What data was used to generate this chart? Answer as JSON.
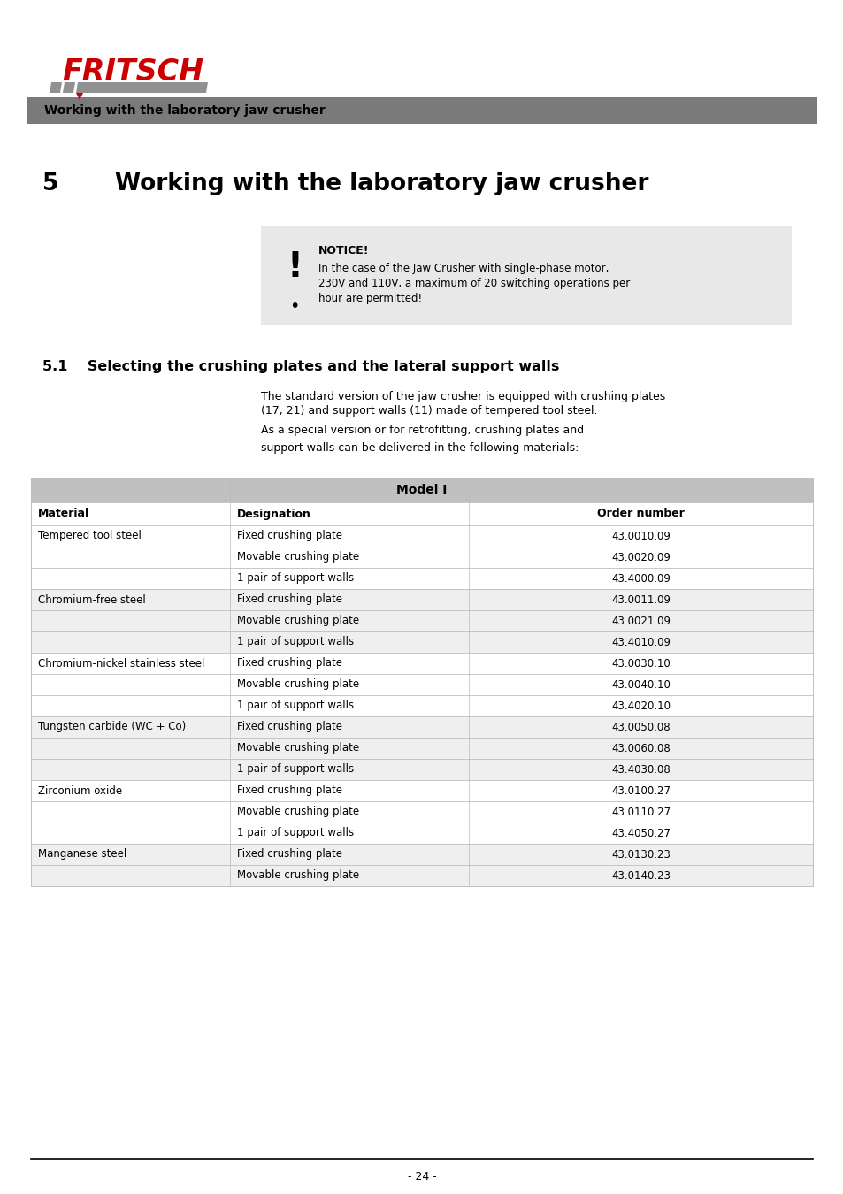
{
  "page_bg": "#ffffff",
  "header_bar_color": "#7a7a7a",
  "header_text": "Working with the laboratory jaw crusher",
  "chapter_num": "5",
  "chapter_title": "Working with the laboratory jaw crusher",
  "notice_box_color": "#e8e8e8",
  "notice_title": "NOTICE!",
  "notice_line1": "In the case of the Jaw Crusher with single-phase motor,",
  "notice_line2": "230V and 110V, a maximum of 20 switching operations per",
  "notice_line3": "hour are permitted!",
  "section_title": "5.1    Selecting the crushing plates and the lateral support walls",
  "body_line1": "The standard version of the jaw crusher is equipped with crushing plates",
  "body_line2": "(17, 21) and support walls (11) made of tempered tool steel.",
  "body_line3": "As a special version or for retrofitting, crushing plates and",
  "body_line4": "support walls can be delivered in the following materials:",
  "table_title": "Model I",
  "table_header_bg": "#c0c0c0",
  "table_row_bg_light": "#efefef",
  "table_row_bg_white": "#ffffff",
  "table_cols": [
    "Material",
    "Designation",
    "Order number"
  ],
  "table_rows": [
    [
      "Tempered tool steel",
      "Fixed crushing plate",
      "43.0010.09"
    ],
    [
      "",
      "Movable crushing plate",
      "43.0020.09"
    ],
    [
      "",
      "1 pair of support walls",
      "43.4000.09"
    ],
    [
      "Chromium-free steel",
      "Fixed crushing plate",
      "43.0011.09"
    ],
    [
      "",
      "Movable crushing plate",
      "43.0021.09"
    ],
    [
      "",
      "1 pair of support walls",
      "43.4010.09"
    ],
    [
      "Chromium-nickel stainless steel",
      "Fixed crushing plate",
      "43.0030.10"
    ],
    [
      "",
      "Movable crushing plate",
      "43.0040.10"
    ],
    [
      "",
      "1 pair of support walls",
      "43.4020.10"
    ],
    [
      "Tungsten carbide (WC + Co)",
      "Fixed crushing plate",
      "43.0050.08"
    ],
    [
      "",
      "Movable crushing plate",
      "43.0060.08"
    ],
    [
      "",
      "1 pair of support walls",
      "43.4030.08"
    ],
    [
      "Zirconium oxide",
      "Fixed crushing plate",
      "43.0100.27"
    ],
    [
      "",
      "Movable crushing plate",
      "43.0110.27"
    ],
    [
      "",
      "1 pair of support walls",
      "43.4050.27"
    ],
    [
      "Manganese steel",
      "Fixed crushing plate",
      "43.0130.23"
    ],
    [
      "",
      "Movable crushing plate",
      "43.0140.23"
    ]
  ],
  "footer_text": "- 24 -",
  "fritsch_color": "#cc0000",
  "logo_gray": "#919191"
}
